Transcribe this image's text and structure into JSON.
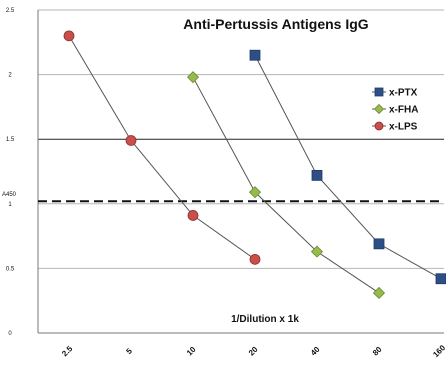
{
  "chart_data": {
    "type": "line",
    "title": "Anti-Pertussis Antigens IgG",
    "xlabel": "1/Dilution x 1k",
    "ylabel": "",
    "categories": [
      "2.5",
      "5",
      "10",
      "20",
      "40",
      "80",
      "160"
    ],
    "ylim": [
      0,
      2.5
    ],
    "yticks": [
      "0",
      "0.5",
      "1",
      "1.5",
      "2",
      "2.5"
    ],
    "grid": true,
    "legend_position": "right",
    "reference_line": {
      "label": "A450",
      "y": 1.02
    },
    "series": [
      {
        "name": "x-PTX",
        "marker": "square",
        "color": "#2e4f86",
        "values": [
          null,
          null,
          null,
          2.15,
          1.22,
          0.69,
          0.42
        ]
      },
      {
        "name": "x-FHA",
        "marker": "diamond",
        "color": "#95bb4c",
        "values": [
          null,
          null,
          1.98,
          1.09,
          0.63,
          0.31,
          null
        ]
      },
      {
        "name": "x-LPS",
        "marker": "circle",
        "color": "#c94f4b",
        "values": [
          2.3,
          1.49,
          0.91,
          0.57,
          null,
          null,
          null
        ]
      }
    ]
  }
}
